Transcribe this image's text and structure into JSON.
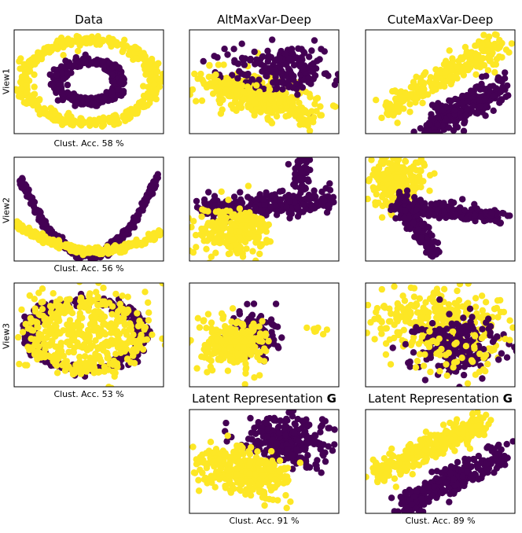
{
  "figure": {
    "columns": [
      "Data",
      "AltMaxVar-Deep",
      "CuteMaxVar-Deep"
    ],
    "rows": [
      "View1",
      "View2",
      "View3"
    ],
    "latent_title_text": "Latent Representation ",
    "latent_title_bold": "G",
    "colors": {
      "cluster0": "#fde725",
      "cluster1": "#440154",
      "frame": "#000000"
    }
  },
  "chart_data": [
    {
      "type": "scatter",
      "title": "Data",
      "row": "View1",
      "annotation": "Clust. Acc. 58 %",
      "pattern": "concentric rings: inner purple ring, outer yellow ring",
      "series": [
        {
          "name": "cluster 0",
          "color": "#fde725"
        },
        {
          "name": "cluster 1",
          "color": "#440154"
        }
      ]
    },
    {
      "type": "scatter",
      "title": "AltMaxVar-Deep",
      "row": "View1",
      "annotation": "",
      "pattern": "overlapping clouds, purple upper-right, yellow lower band",
      "series": [
        {
          "name": "cluster 0",
          "color": "#fde725"
        },
        {
          "name": "cluster 1",
          "color": "#440154"
        }
      ]
    },
    {
      "type": "scatter",
      "title": "CuteMaxVar-Deep",
      "row": "View1",
      "annotation": "",
      "pattern": "two parallel diagonal bands, yellow above purple",
      "series": [
        {
          "name": "cluster 0",
          "color": "#fde725"
        },
        {
          "name": "cluster 1",
          "color": "#440154"
        }
      ]
    },
    {
      "type": "scatter",
      "title": "Data",
      "row": "View2",
      "annotation": "Clust. Acc. 56 %",
      "pattern": "purple steep parabola, yellow shallow parabola",
      "series": [
        {
          "name": "cluster 0",
          "color": "#fde725"
        },
        {
          "name": "cluster 1",
          "color": "#440154"
        }
      ]
    },
    {
      "type": "scatter",
      "title": "AltMaxVar-Deep",
      "row": "View2",
      "annotation": "",
      "pattern": "purple band upper-right with spike, yellow blob lower-left",
      "series": [
        {
          "name": "cluster 0",
          "color": "#fde725"
        },
        {
          "name": "cluster 1",
          "color": "#440154"
        }
      ]
    },
    {
      "type": "scatter",
      "title": "CuteMaxVar-Deep",
      "row": "View2",
      "annotation": "",
      "pattern": "yellow cluster top-left, purple branching arms",
      "series": [
        {
          "name": "cluster 0",
          "color": "#fde725"
        },
        {
          "name": "cluster 1",
          "color": "#440154"
        }
      ]
    },
    {
      "type": "scatter",
      "title": "Data",
      "row": "View3",
      "annotation": "Clust. Acc. 53 %",
      "pattern": "noisy purple ring with yellow filled center",
      "series": [
        {
          "name": "cluster 0",
          "color": "#fde725"
        },
        {
          "name": "cluster 1",
          "color": "#440154"
        }
      ]
    },
    {
      "type": "scatter",
      "title": "AltMaxVar-Deep",
      "row": "View3",
      "annotation": "",
      "pattern": "compact blob mostly yellow with purple right side",
      "series": [
        {
          "name": "cluster 0",
          "color": "#fde725"
        },
        {
          "name": "cluster 1",
          "color": "#440154"
        }
      ]
    },
    {
      "type": "scatter",
      "title": "CuteMaxVar-Deep",
      "row": "View3",
      "annotation": "",
      "pattern": "yellow cloud top, purple cloud bottom-right",
      "series": [
        {
          "name": "cluster 0",
          "color": "#fde725"
        },
        {
          "name": "cluster 1",
          "color": "#440154"
        }
      ]
    },
    {
      "type": "scatter",
      "title": "Latent Representation G",
      "row": "Latent",
      "method": "AltMaxVar-Deep",
      "annotation": "Clust. Acc. 91 %",
      "pattern": "purple upper-right, yellow lower-left diagonal split",
      "series": [
        {
          "name": "cluster 0",
          "color": "#fde725"
        },
        {
          "name": "cluster 1",
          "color": "#440154"
        }
      ]
    },
    {
      "type": "scatter",
      "title": "Latent Representation G",
      "row": "Latent",
      "method": "CuteMaxVar-Deep",
      "annotation": "Clust. Acc. 89 %",
      "pattern": "two parallel diagonal bands, yellow above purple",
      "series": [
        {
          "name": "cluster 0",
          "color": "#fde725"
        },
        {
          "name": "cluster 1",
          "color": "#440154"
        }
      ]
    }
  ]
}
